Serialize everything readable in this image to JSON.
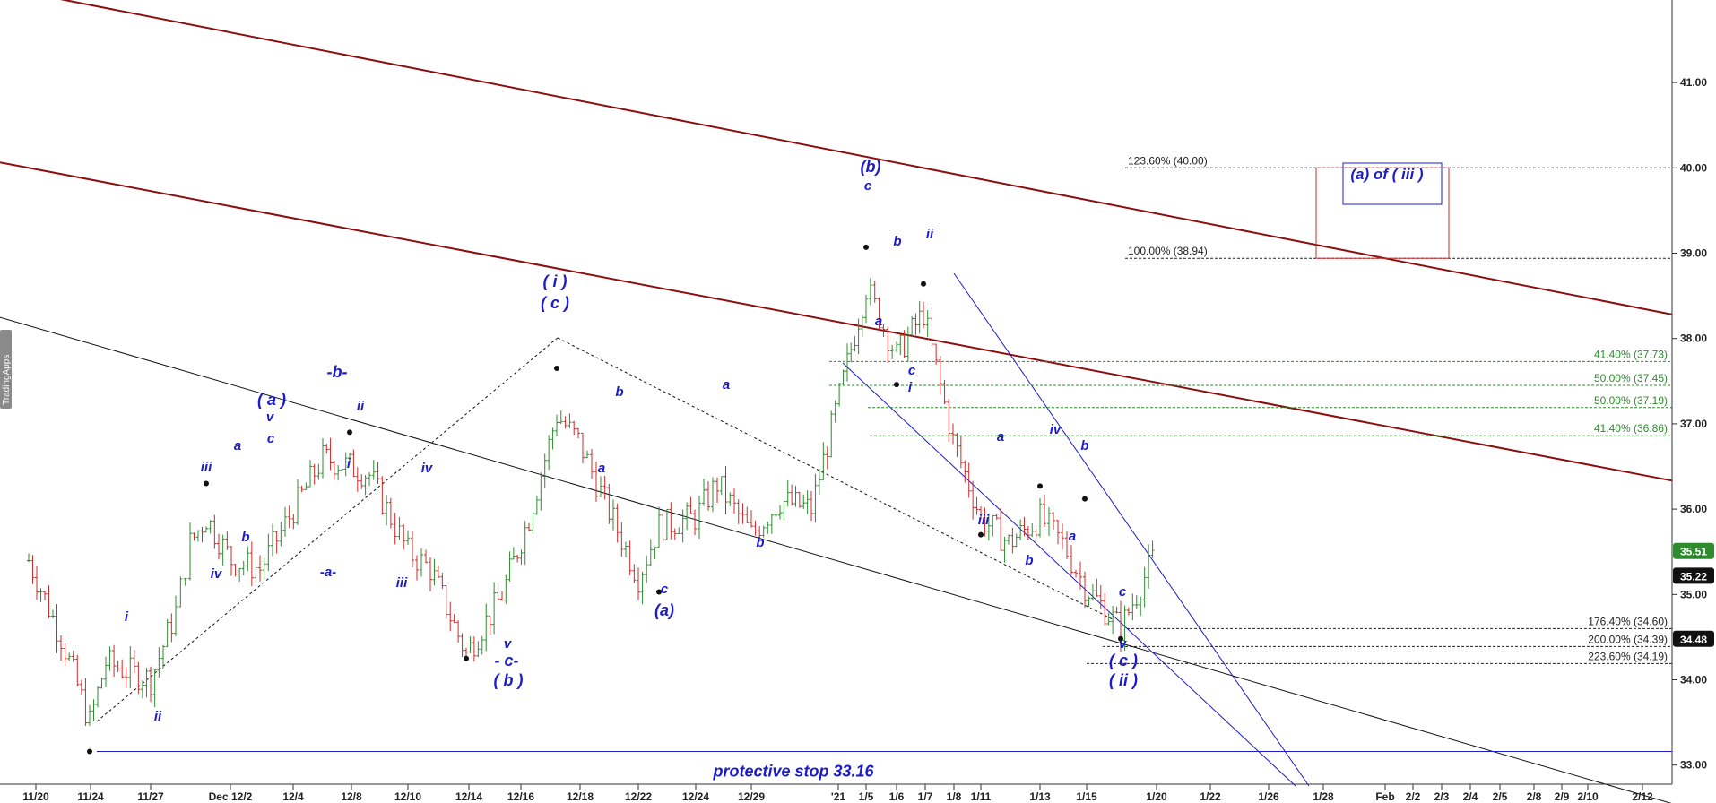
{
  "chart_data": {
    "type": "line",
    "title": "",
    "xlabel": "",
    "ylabel": "",
    "watermark": "TradingApps",
    "x_ticks": [
      "11/20",
      "11/24",
      "11/27",
      "Dec 12/2",
      "12/4",
      "12/8",
      "12/10",
      "12/14",
      "12/16",
      "12/18",
      "12/22",
      "12/24",
      "12/29",
      "'21",
      "1/5",
      "1/6",
      "1/7",
      "1/8",
      "1/11",
      "1/13",
      "1/15",
      "1/20",
      "1/22",
      "1/26",
      "1/28",
      "Feb",
      "2/2",
      "2/3",
      "2/4",
      "2/5",
      "2/8",
      "2/9",
      "2/10",
      "2/12"
    ],
    "y_ticks": [
      "33.00",
      "34.00",
      "35.00",
      "36.00",
      "37.00",
      "38.00",
      "39.00",
      "40.00",
      "41.00"
    ],
    "ylim": [
      32.33,
      41.75
    ],
    "price_badges": [
      {
        "label": "35.51",
        "value": 35.51,
        "color": "#2e8b2e"
      },
      {
        "label": "35.22",
        "value": 35.22,
        "color": "#111111"
      },
      {
        "label": "34.48",
        "value": 34.48,
        "color": "#111111"
      }
    ],
    "key_points": [
      {
        "date": "11/24",
        "value": 33.16,
        "label": "ii"
      },
      {
        "date": "12/2",
        "value": 36.3,
        "label": "( a )"
      },
      {
        "date": "12/8",
        "value": 36.9,
        "label": "-b-"
      },
      {
        "date": "12/14",
        "value": 34.25,
        "label": "( b )"
      },
      {
        "date": "12/17",
        "value": 37.65,
        "label": "( i )"
      },
      {
        "date": "12/23",
        "value": 35.03,
        "label": "(a)"
      },
      {
        "date": "1/5",
        "value": 39.07,
        "label": "(b)"
      },
      {
        "date": "1/6",
        "value": 37.46,
        "label": "i"
      },
      {
        "date": "1/7",
        "value": 38.64,
        "label": "ii"
      },
      {
        "date": "1/11",
        "value": 35.7,
        "label": "iii"
      },
      {
        "date": "1/13",
        "value": 36.27,
        "label": "iv"
      },
      {
        "date": "1/15",
        "value": 36.12,
        "label": "b"
      },
      {
        "date": "1/19",
        "value": 34.48,
        "label": "( ii )"
      }
    ],
    "series": [
      {
        "name": "Price (OHLC)",
        "type": "ohlc",
        "color": "#2e8b2e",
        "down_color": "#cc2b2b",
        "values": [
          {
            "date": "11/20",
            "close": 35.4
          },
          {
            "date": "11/23",
            "close": 34.5
          },
          {
            "date": "11/24",
            "close": 33.5
          },
          {
            "date": "11/25",
            "close": 34.2
          },
          {
            "date": "11/27",
            "close": 34.0
          },
          {
            "date": "11/30",
            "close": 34.8
          },
          {
            "date": "12/1",
            "close": 35.6
          },
          {
            "date": "12/2",
            "close": 35.9
          },
          {
            "date": "12/3",
            "close": 35.4
          },
          {
            "date": "12/4",
            "close": 35.3
          },
          {
            "date": "12/7",
            "close": 36.6
          },
          {
            "date": "12/8",
            "close": 36.5
          },
          {
            "date": "12/9",
            "close": 36.4
          },
          {
            "date": "12/10",
            "close": 35.5
          },
          {
            "date": "12/11",
            "close": 35.3
          },
          {
            "date": "12/14",
            "close": 34.3
          },
          {
            "date": "12/15",
            "close": 35.0
          },
          {
            "date": "12/16",
            "close": 35.9
          },
          {
            "date": "12/17",
            "close": 37.1
          },
          {
            "date": "12/18",
            "close": 36.8
          },
          {
            "date": "12/21",
            "close": 36.2
          },
          {
            "date": "12/22",
            "close": 35.2
          },
          {
            "date": "12/23",
            "close": 35.8
          },
          {
            "date": "12/24",
            "close": 35.9
          },
          {
            "date": "12/28",
            "close": 36.3
          },
          {
            "date": "12/29",
            "close": 35.7
          },
          {
            "date": "12/30",
            "close": 36.1
          },
          {
            "date": "12/31",
            "close": 36.0
          },
          {
            "date": "1/4",
            "close": 37.7
          },
          {
            "date": "1/5",
            "close": 38.6
          },
          {
            "date": "1/6",
            "close": 37.8
          },
          {
            "date": "1/7",
            "close": 38.3
          },
          {
            "date": "1/8",
            "close": 36.8
          },
          {
            "date": "1/11",
            "close": 35.9
          },
          {
            "date": "1/12",
            "close": 35.6
          },
          {
            "date": "1/13",
            "close": 35.9
          },
          {
            "date": "1/14",
            "close": 35.6
          },
          {
            "date": "1/15",
            "close": 35.1
          },
          {
            "date": "1/19",
            "close": 34.6
          },
          {
            "date": "1/20",
            "close": 35.51
          }
        ]
      },
      {
        "name": "Channel upper",
        "type": "trendline",
        "color": "#8b0f0f",
        "values": [
          {
            "date": "11/20",
            "value": 42.05
          },
          {
            "date": "2/12",
            "value": 38.35
          }
        ]
      },
      {
        "name": "Channel middle",
        "type": "trendline",
        "color": "#8b0f0f",
        "values": [
          {
            "date": "11/20",
            "value": 40.0
          },
          {
            "date": "2/12",
            "value": 36.4
          }
        ]
      },
      {
        "name": "Channel lower",
        "type": "trendline",
        "color": "#111111",
        "values": [
          {
            "date": "11/20",
            "value": 38.15
          },
          {
            "date": "2/12",
            "value": 32.65
          }
        ]
      }
    ],
    "fib_levels": [
      {
        "label": "123.60% (40.00)",
        "value": 40.0,
        "color": "#222222"
      },
      {
        "label": "100.00% (38.94)",
        "value": 38.94,
        "color": "#222222"
      },
      {
        "label": "41.40% (37.73)",
        "value": 37.73,
        "color": "#2e8b2e"
      },
      {
        "label": "50.00% (37.45)",
        "value": 37.45,
        "color": "#2e8b2e"
      },
      {
        "label": "50.00% (37.19)",
        "value": 37.19,
        "color": "#2e8b2e"
      },
      {
        "label": "41.40% (36.86)",
        "value": 36.86,
        "color": "#2e8b2e"
      },
      {
        "label": "176.40% (34.60)",
        "value": 34.6,
        "color": "#222222"
      },
      {
        "label": "200.00% (34.39)",
        "value": 34.39,
        "color": "#222222"
      },
      {
        "label": "223.60% (34.19)",
        "value": 34.19,
        "color": "#222222"
      }
    ],
    "stop_line": {
      "value": 33.16,
      "label": "protective stop 33.16",
      "color": "#1c1cc8"
    },
    "target_box": {
      "label": "(a) of ( iii )",
      "low": 38.94,
      "high": 40.0,
      "border_color": "#cc2b2b",
      "inner_color": "#1c1cc8"
    },
    "wave_labels": [
      "i",
      "ii",
      "iii",
      "iv",
      "a",
      "b",
      "c",
      "v",
      "( a )",
      "-b-",
      "ii",
      "i",
      "-a-",
      "iv",
      "iii",
      "v",
      "- c-",
      "( b )",
      "( i )",
      "( c )",
      "b",
      "a",
      "c",
      "(a)",
      "a",
      "b",
      "(b)",
      "c",
      "b",
      "ii",
      "a",
      "c",
      "i",
      "iii",
      "a",
      "b",
      "iv",
      "b",
      "a",
      "c",
      "v",
      "( c )",
      "( ii )"
    ]
  }
}
